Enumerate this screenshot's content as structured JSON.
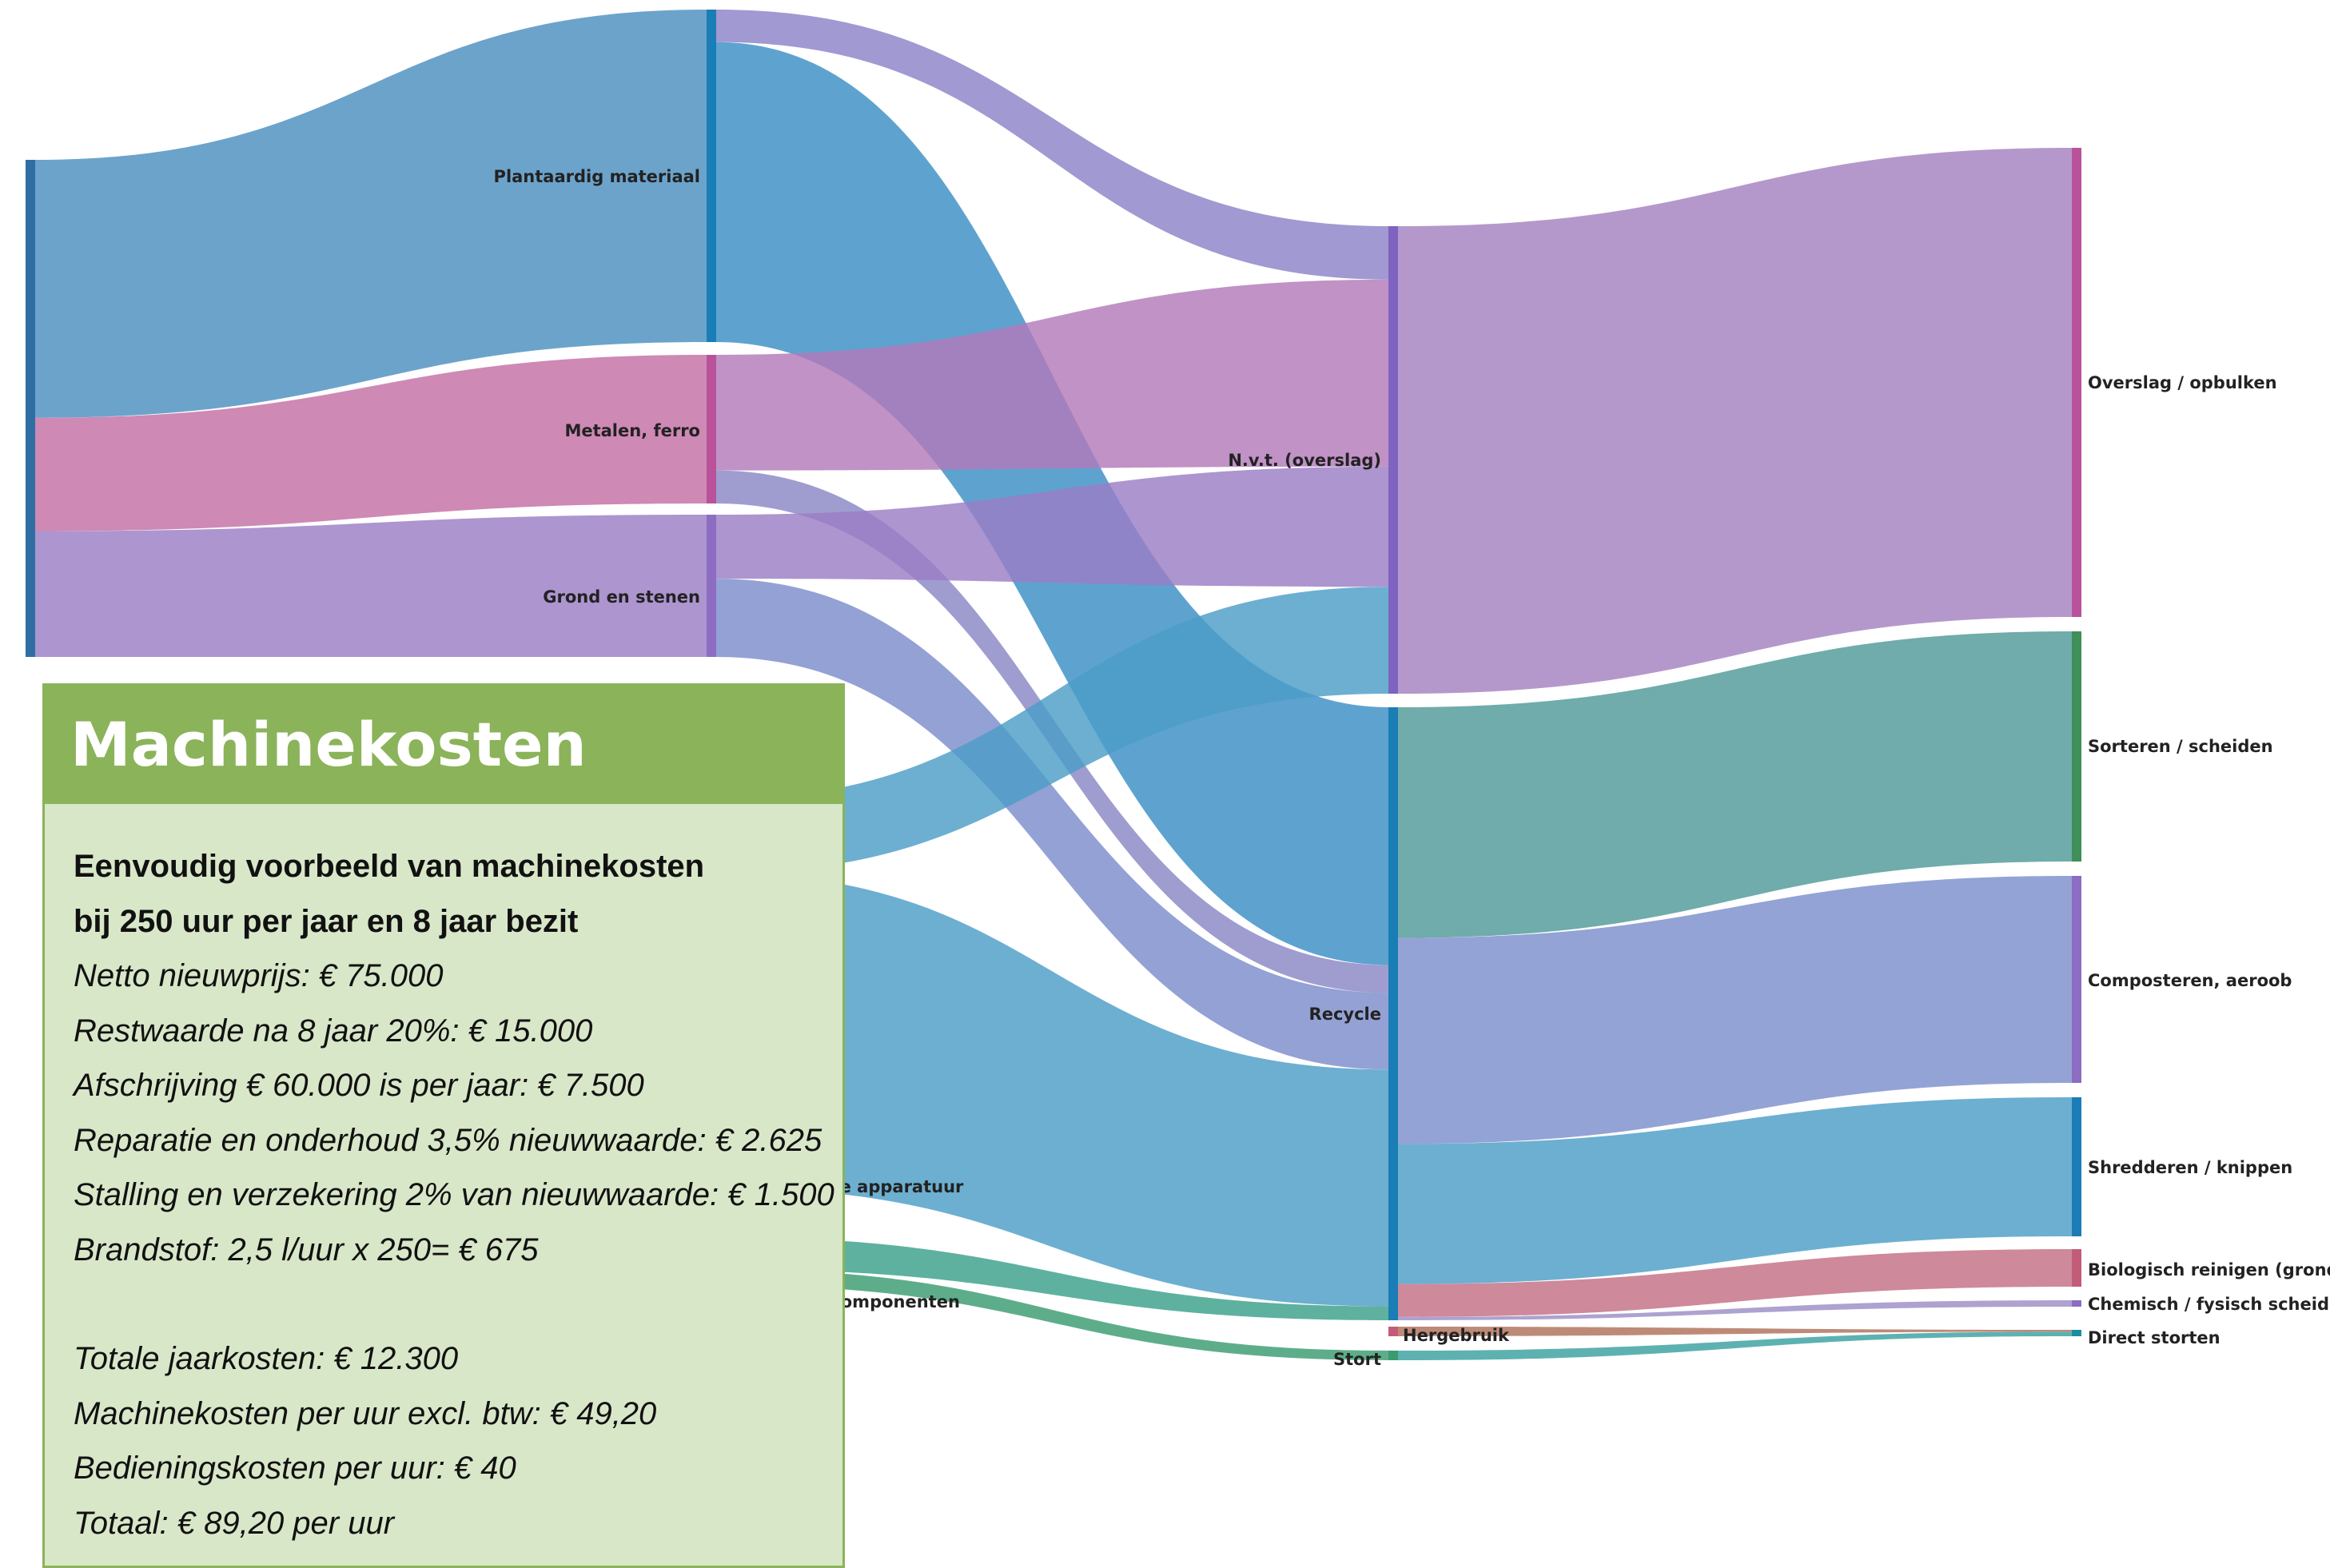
{
  "colors": {
    "blue": "#4c9ec7",
    "pink": "#c36fa5",
    "purple": "#9b7ec6",
    "green": "#5f9e6e",
    "darkblue": "#3d7fb2",
    "red": "#c35c77",
    "teal": "#3aa3a0",
    "brown": "#b0705a",
    "box_header": "#8bb35a",
    "box_bg": "#d9e7c9"
  },
  "sankey": {
    "nodes": [
      {
        "id": "src",
        "label": "",
        "color": "#2f6ea3"
      },
      {
        "id": "plant",
        "label": "Plantaardig materiaal",
        "color": "#1a7db5"
      },
      {
        "id": "metal",
        "label": "Metalen, ferro",
        "color": "#b9529a"
      },
      {
        "id": "grond",
        "label": "Grond en stenen",
        "color": "#8d6cc3"
      },
      {
        "id": "elec",
        "label": "Elektronische apparatuur",
        "color": "#3d8fb8"
      },
      {
        "id": "comp",
        "label": "Apparatuurcomponenten",
        "color": "#3aa07a"
      },
      {
        "id": "nvt",
        "label": "N.v.t. (overslag)",
        "color": "#7e63c0"
      },
      {
        "id": "recycle",
        "label": "Recycle",
        "color": "#1a7db5"
      },
      {
        "id": "hergebruik",
        "label": "Hergebruik",
        "color": "#c35c77"
      },
      {
        "id": "stort",
        "label": "Stort",
        "color": "#3a9b70"
      },
      {
        "id": "overslag",
        "label": "Overslag / opbulken",
        "color": "#b9529a"
      },
      {
        "id": "sorteren",
        "label": "Sorteren / scheiden",
        "color": "#3f8f58"
      },
      {
        "id": "composteren",
        "label": "Composteren, aeroob",
        "color": "#8d6cc3"
      },
      {
        "id": "shredderen",
        "label": "Shredderen / knippen",
        "color": "#1a7db5"
      },
      {
        "id": "biologisch",
        "label": "Biologisch reinigen (grond)",
        "color": "#c35c77"
      },
      {
        "id": "chemisch",
        "label": "Chemisch / fysisch scheiden",
        "color": "#8d6cc3"
      },
      {
        "id": "direct",
        "label": "Direct storten",
        "color": "#1a8fa0"
      }
    ],
    "links": [
      {
        "source": "src",
        "target": "plant",
        "value": 41,
        "color": "#4c8fbf"
      },
      {
        "source": "src",
        "target": "metal",
        "value": 18,
        "color": "#c36fa5"
      },
      {
        "source": "src",
        "target": "grond",
        "value": 20,
        "color": "#9b7ec6"
      },
      {
        "source": "plant",
        "target": "nvt",
        "value": 4,
        "color": "#8c82c8"
      },
      {
        "source": "plant",
        "target": "recycle",
        "value": 37,
        "color": "#3b8fc4"
      },
      {
        "source": "metal",
        "target": "nvt",
        "value": 14,
        "color": "#b27ab9"
      },
      {
        "source": "metal",
        "target": "recycle",
        "value": 4,
        "color": "#8a88c4"
      },
      {
        "source": "grond",
        "target": "nvt",
        "value": 9,
        "color": "#9b7ec6"
      },
      {
        "source": "grond",
        "target": "recycle",
        "value": 11,
        "color": "#7c8ccc"
      },
      {
        "source": "elec",
        "target": "nvt",
        "value": 8,
        "color": "#4c9ec7"
      },
      {
        "source": "elec",
        "target": "recycle",
        "value": 34,
        "color": "#4c9ec7"
      },
      {
        "source": "comp",
        "target": "recycle",
        "value": 2,
        "color": "#3aa08a"
      },
      {
        "source": "comp",
        "target": "stort",
        "value": 1,
        "color": "#3a9b70"
      },
      {
        "source": "nvt",
        "target": "overslag",
        "value": 58,
        "color": "#a581c0"
      },
      {
        "source": "recycle",
        "target": "sorteren",
        "value": 28,
        "color": "#4f9a98"
      },
      {
        "source": "recycle",
        "target": "composteren",
        "value": 25,
        "color": "#7b8fcc"
      },
      {
        "source": "recycle",
        "target": "shredderen",
        "value": 17,
        "color": "#4c9ec7"
      },
      {
        "source": "recycle",
        "target": "biologisch",
        "value": 4,
        "color": "#c36f85"
      },
      {
        "source": "recycle",
        "target": "chemisch",
        "value": 0.4,
        "color": "#9b8ec6"
      },
      {
        "source": "hergebruik",
        "target": "direct",
        "value": 0.4,
        "color": "#b0705a"
      },
      {
        "source": "stort",
        "target": "direct",
        "value": 1,
        "color": "#3aa0a0"
      }
    ]
  },
  "cost_box": {
    "title": "Machinekosten",
    "subtitle_lines": [
      "Eenvoudig voorbeeld van machinekosten",
      "bij 250 uur per jaar en 8 jaar bezit"
    ],
    "items": [
      "Netto nieuwprijs: € 75.000",
      "Restwaarde na 8 jaar 20%: € 15.000",
      "Afschrijving € 60.000 is per jaar: € 7.500",
      "Reparatie en onderhoud 3,5%  nieuwwaarde: € 2.625",
      "Stalling en verzekering 2% van nieuwwaarde: € 1.500",
      "Brandstof: 2,5 l/uur  x 250= € 675"
    ],
    "totals": [
      "Totale jaarkosten: € 12.300",
      "Machinekosten per uur excl. btw: € 49,20",
      "Bedieningskosten per uur: € 40",
      "Totaal: € 89,20 per uur"
    ]
  }
}
